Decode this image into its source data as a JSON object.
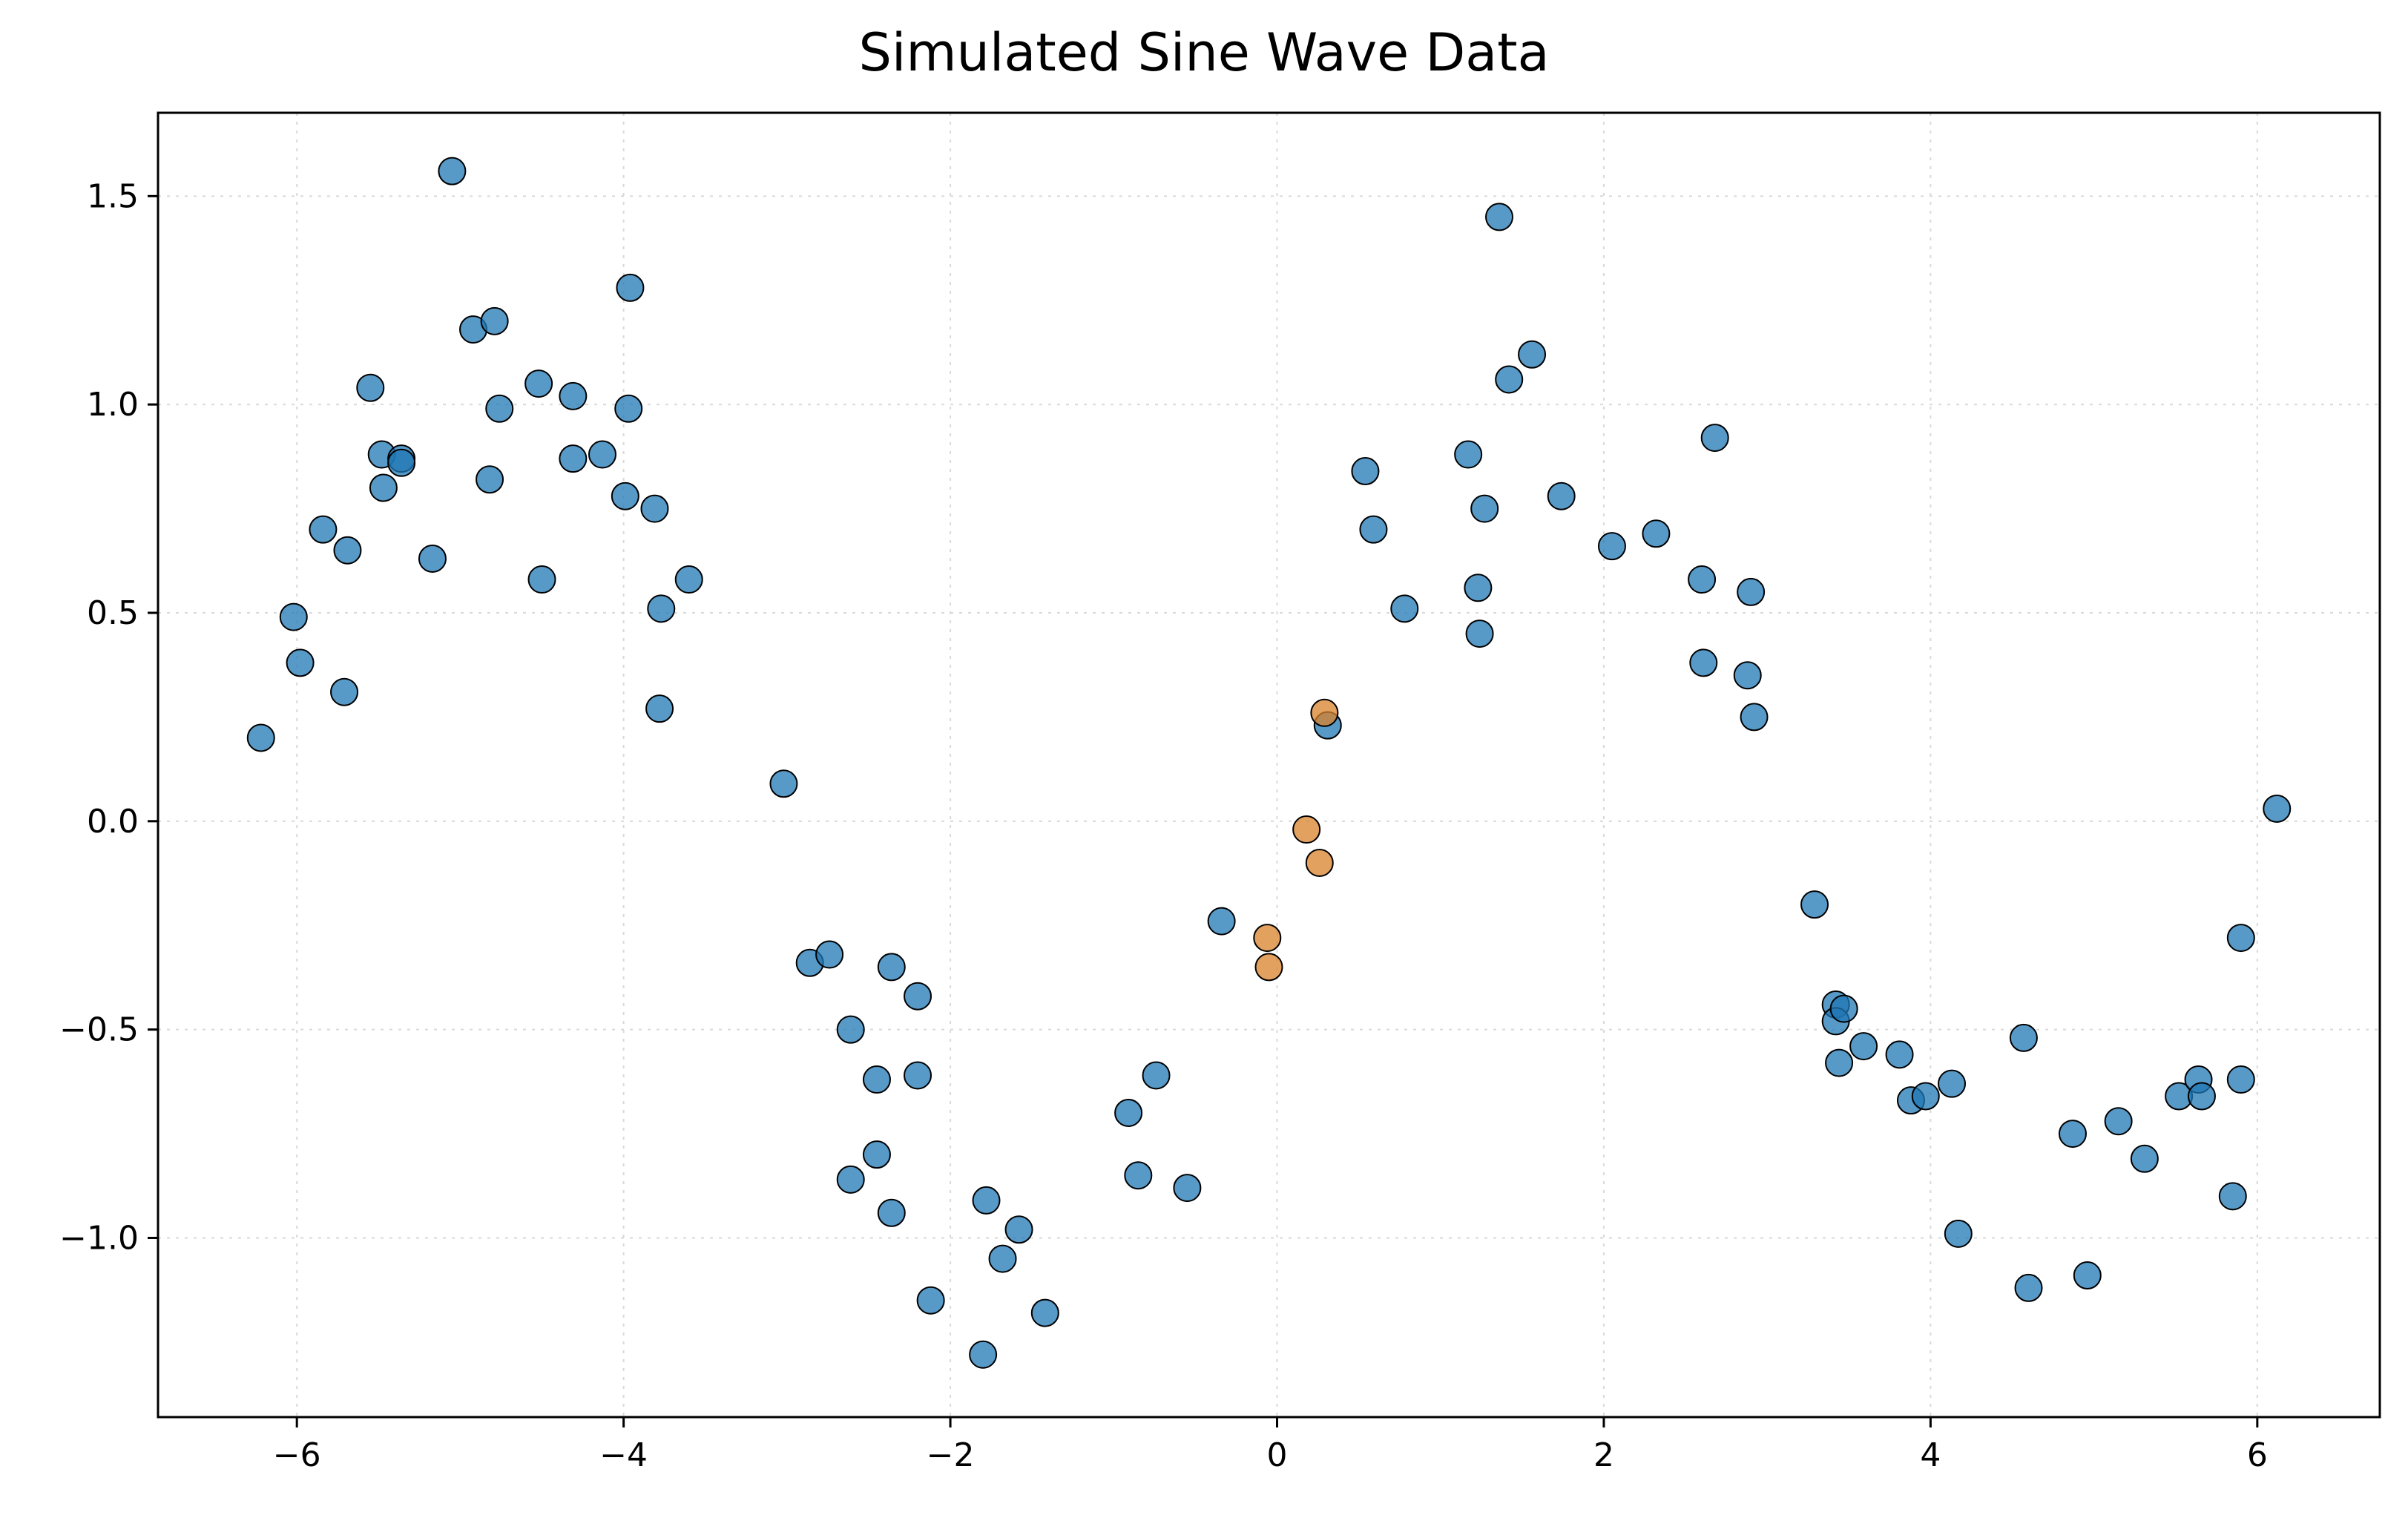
{
  "chart_data": {
    "type": "scatter",
    "title": "Simulated Sine Wave Data",
    "xlabel": "",
    "ylabel": "",
    "xlim": [
      -6.85,
      6.75
    ],
    "ylim": [
      -1.43,
      1.7
    ],
    "xticks": [
      -6,
      -4,
      -2,
      0,
      2,
      4,
      6
    ],
    "xtick_labels": [
      "−6",
      "−4",
      "−2",
      "0",
      "2",
      "4",
      "6"
    ],
    "yticks": [
      -1.0,
      -0.5,
      0.0,
      0.5,
      1.0,
      1.5
    ],
    "ytick_labels": [
      "−1.0",
      "−0.5",
      "0.0",
      "0.5",
      "1.0",
      "1.5"
    ],
    "grid": true,
    "colors": {
      "series_1": "#1f77b4",
      "series_2": "#d9822b"
    },
    "series": [
      {
        "color": "#1f77b4",
        "points": [
          [
            -6.22,
            0.2
          ],
          [
            -6.02,
            0.49
          ],
          [
            -5.98,
            0.38
          ],
          [
            -5.84,
            0.7
          ],
          [
            -5.71,
            0.31
          ],
          [
            -5.69,
            0.65
          ],
          [
            -5.55,
            1.04
          ],
          [
            -5.48,
            0.88
          ],
          [
            -5.47,
            0.8
          ],
          [
            -5.36,
            0.87
          ],
          [
            -5.36,
            0.86
          ],
          [
            -5.17,
            0.63
          ],
          [
            -5.05,
            1.56
          ],
          [
            -4.92,
            1.18
          ],
          [
            -4.82,
            0.82
          ],
          [
            -4.79,
            1.2
          ],
          [
            -4.76,
            0.99
          ],
          [
            -4.52,
            1.05
          ],
          [
            -4.5,
            0.58
          ],
          [
            -4.31,
            1.02
          ],
          [
            -4.31,
            0.87
          ],
          [
            -4.13,
            0.88
          ],
          [
            -3.99,
            0.78
          ],
          [
            -3.97,
            0.99
          ],
          [
            -3.96,
            1.28
          ],
          [
            -3.81,
            0.75
          ],
          [
            -3.77,
            0.51
          ],
          [
            -3.78,
            0.27
          ],
          [
            -3.6,
            0.58
          ],
          [
            -3.02,
            0.09
          ],
          [
            -2.86,
            -0.34
          ],
          [
            -2.74,
            -0.32
          ],
          [
            -2.61,
            -0.5
          ],
          [
            -2.61,
            -0.86
          ],
          [
            -2.45,
            -0.62
          ],
          [
            -2.45,
            -0.8
          ],
          [
            -2.36,
            -0.35
          ],
          [
            -2.36,
            -0.94
          ],
          [
            -2.2,
            -0.42
          ],
          [
            -2.2,
            -0.61
          ],
          [
            -2.12,
            -1.15
          ],
          [
            -1.8,
            -1.28
          ],
          [
            -1.78,
            -0.91
          ],
          [
            -1.68,
            -1.05
          ],
          [
            -1.58,
            -0.98
          ],
          [
            -1.42,
            -1.18
          ],
          [
            -0.91,
            -0.7
          ],
          [
            -0.85,
            -0.85
          ],
          [
            -0.74,
            -0.61
          ],
          [
            -0.55,
            -0.88
          ],
          [
            -0.34,
            -0.24
          ],
          [
            0.31,
            0.23
          ],
          [
            0.54,
            0.84
          ],
          [
            0.59,
            0.7
          ],
          [
            0.78,
            0.51
          ],
          [
            1.17,
            0.88
          ],
          [
            1.23,
            0.56
          ],
          [
            1.24,
            0.45
          ],
          [
            1.27,
            0.75
          ],
          [
            1.36,
            1.45
          ],
          [
            1.42,
            1.06
          ],
          [
            1.56,
            1.12
          ],
          [
            1.74,
            0.78
          ],
          [
            2.05,
            0.66
          ],
          [
            2.32,
            0.69
          ],
          [
            2.6,
            0.58
          ],
          [
            2.61,
            0.38
          ],
          [
            2.68,
            0.92
          ],
          [
            2.88,
            0.35
          ],
          [
            2.9,
            0.55
          ],
          [
            2.92,
            0.25
          ],
          [
            3.29,
            -0.2
          ],
          [
            3.42,
            -0.44
          ],
          [
            3.42,
            -0.48
          ],
          [
            3.44,
            -0.58
          ],
          [
            3.47,
            -0.45
          ],
          [
            3.59,
            -0.54
          ],
          [
            3.81,
            -0.56
          ],
          [
            3.88,
            -0.67
          ],
          [
            3.97,
            -0.66
          ],
          [
            4.13,
            -0.63
          ],
          [
            4.17,
            -0.99
          ],
          [
            4.57,
            -0.52
          ],
          [
            4.6,
            -1.12
          ],
          [
            4.87,
            -0.75
          ],
          [
            4.96,
            -1.09
          ],
          [
            5.15,
            -0.72
          ],
          [
            5.31,
            -0.81
          ],
          [
            5.52,
            -0.66
          ],
          [
            5.64,
            -0.62
          ],
          [
            5.66,
            -0.66
          ],
          [
            5.85,
            -0.9
          ],
          [
            5.9,
            -0.28
          ],
          [
            5.9,
            -0.62
          ],
          [
            6.12,
            0.03
          ]
        ]
      },
      {
        "color": "#d9822b",
        "points": [
          [
            -0.06,
            -0.28
          ],
          [
            -0.05,
            -0.35
          ],
          [
            0.18,
            -0.02
          ],
          [
            0.26,
            -0.1
          ],
          [
            0.29,
            0.26
          ]
        ]
      }
    ]
  }
}
